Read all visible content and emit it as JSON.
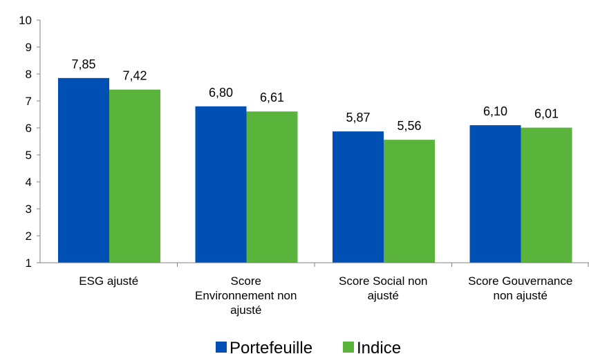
{
  "chart_data": {
    "type": "bar",
    "categories": [
      [
        "ESG ajusté"
      ],
      [
        "Score",
        "Environnement non",
        "ajusté"
      ],
      [
        "Score Social non",
        "ajusté"
      ],
      [
        "Score Gouvernance",
        "non ajusté"
      ]
    ],
    "series": [
      {
        "name": "Portefeuille",
        "values": [
          7.85,
          6.8,
          5.87,
          6.1
        ],
        "labels": [
          "7,85",
          "6,80",
          "5,87",
          "6,10"
        ],
        "color": "#0050b4"
      },
      {
        "name": "Indice",
        "values": [
          7.42,
          6.61,
          5.56,
          6.01
        ],
        "labels": [
          "7,42",
          "6,61",
          "5,56",
          "6,01"
        ],
        "color": "#5ab43c"
      }
    ],
    "ylim": [
      1,
      10
    ],
    "yticks": [
      1,
      2,
      3,
      4,
      5,
      6,
      7,
      8,
      9,
      10
    ],
    "grid": false,
    "legend": "bottom"
  }
}
